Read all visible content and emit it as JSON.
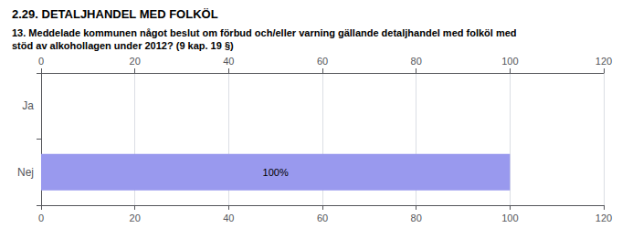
{
  "chart_data": {
    "type": "bar",
    "orientation": "horizontal",
    "title": "2.29. DETALJHANDEL MED FOLKÖL",
    "subtitle": "13. Meddelade kommunen något beslut om förbud och/eller varning gällande detaljhandel med folköl med\nstöd av alkohollagen under 2012? (9 kap. 19 §)",
    "categories": [
      "Ja",
      "Nej"
    ],
    "values": [
      0,
      100
    ],
    "value_labels": [
      null,
      "100%"
    ],
    "color": "#9999ee",
    "xlim": [
      0,
      120
    ],
    "xticks": [
      0,
      20,
      40,
      60,
      80,
      100,
      120
    ],
    "grid": true
  }
}
